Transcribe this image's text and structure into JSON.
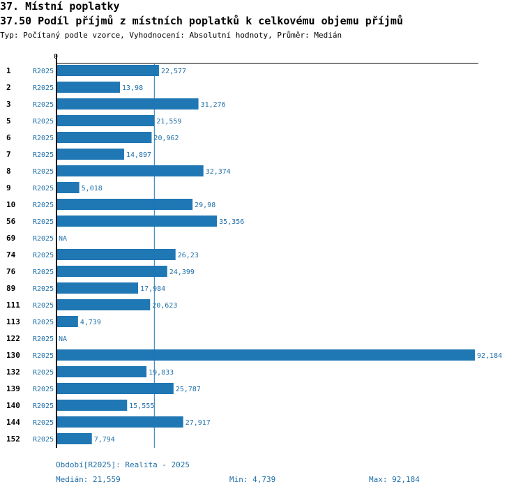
{
  "header": {
    "section_title": "37. Místní poplatky",
    "chart_title": "37.50 Podíl příjmů z místních poplatků k celkovému objemu příjmů",
    "subtitle": "Typ: Počítaný podle vzorce, Vyhodnocení: Absolutní hodnoty, Průměr: Medián"
  },
  "colors": {
    "bar": "#1f77b4",
    "series_label": "#1f6fa8",
    "axis": "#000000",
    "median_line": "#1f77b4"
  },
  "chart_data": {
    "type": "bar",
    "orientation": "horizontal",
    "axis_zero_label": "0",
    "series_name": "R2025",
    "xlim": [
      0,
      92.184
    ],
    "median": 21.559,
    "rows": [
      {
        "id": "1",
        "series": "R2025",
        "value": 22.577,
        "label": "22,577"
      },
      {
        "id": "2",
        "series": "R2025",
        "value": 13.98,
        "label": "13,98"
      },
      {
        "id": "3",
        "series": "R2025",
        "value": 31.276,
        "label": "31,276"
      },
      {
        "id": "5",
        "series": "R2025",
        "value": 21.559,
        "label": "21,559"
      },
      {
        "id": "6",
        "series": "R2025",
        "value": 20.962,
        "label": "20,962"
      },
      {
        "id": "7",
        "series": "R2025",
        "value": 14.897,
        "label": "14,897"
      },
      {
        "id": "8",
        "series": "R2025",
        "value": 32.374,
        "label": "32,374"
      },
      {
        "id": "9",
        "series": "R2025",
        "value": 5.018,
        "label": "5,018"
      },
      {
        "id": "10",
        "series": "R2025",
        "value": 29.98,
        "label": "29,98"
      },
      {
        "id": "56",
        "series": "R2025",
        "value": 35.356,
        "label": "35,356"
      },
      {
        "id": "69",
        "series": "R2025",
        "value": null,
        "label": "NA"
      },
      {
        "id": "74",
        "series": "R2025",
        "value": 26.23,
        "label": "26,23"
      },
      {
        "id": "76",
        "series": "R2025",
        "value": 24.399,
        "label": "24,399"
      },
      {
        "id": "89",
        "series": "R2025",
        "value": 17.984,
        "label": "17,984"
      },
      {
        "id": "111",
        "series": "R2025",
        "value": 20.623,
        "label": "20,623"
      },
      {
        "id": "113",
        "series": "R2025",
        "value": 4.739,
        "label": "4,739"
      },
      {
        "id": "122",
        "series": "R2025",
        "value": null,
        "label": "NA"
      },
      {
        "id": "130",
        "series": "R2025",
        "value": 92.184,
        "label": "92,184"
      },
      {
        "id": "132",
        "series": "R2025",
        "value": 19.833,
        "label": "19,833"
      },
      {
        "id": "139",
        "series": "R2025",
        "value": 25.787,
        "label": "25,787"
      },
      {
        "id": "140",
        "series": "R2025",
        "value": 15.555,
        "label": "15,555"
      },
      {
        "id": "144",
        "series": "R2025",
        "value": 27.917,
        "label": "27,917"
      },
      {
        "id": "152",
        "series": "R2025",
        "value": 7.794,
        "label": "7,794"
      }
    ]
  },
  "footer": {
    "period": "Období[R2025]: Realita - 2025",
    "median_text": "Medián: 21,559",
    "min_text": "Min: 4,739",
    "max_text": "Max: 92,184"
  }
}
